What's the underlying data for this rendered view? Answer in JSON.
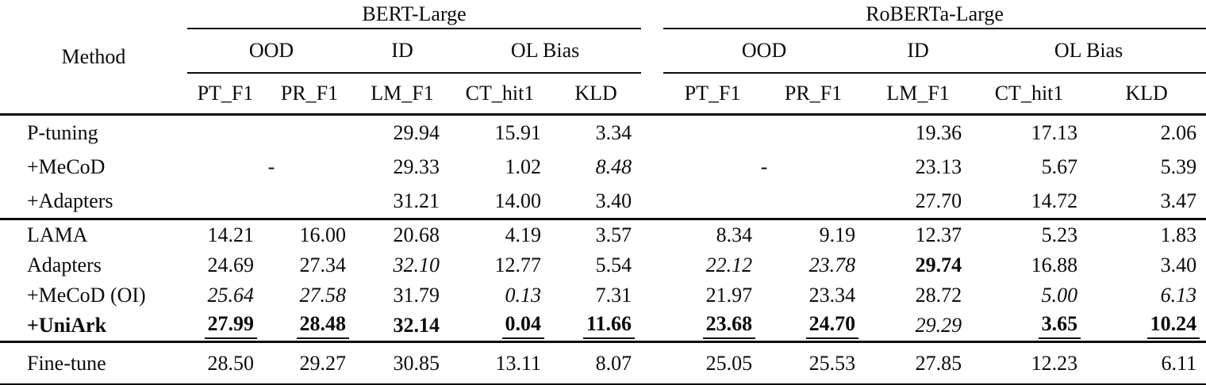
{
  "table": {
    "method_label": "Method",
    "models": [
      "BERT-Large",
      "RoBERTa-Large"
    ],
    "groups": [
      "OOD",
      "ID",
      "OL Bias"
    ],
    "columns": [
      "PT_F1",
      "PR_F1",
      "LM_F1",
      "CT_hit1",
      "KLD"
    ],
    "blocks": [
      {
        "rows": [
          {
            "label": "P-tuning",
            "cells": {
              "bert": [
                {
                  "v": "",
                  "span": 2
                },
                {
                  "v": "29.94"
                },
                {
                  "v": "15.91"
                },
                {
                  "v": "3.34"
                }
              ],
              "roberta": [
                {
                  "v": "",
                  "span": 2
                },
                {
                  "v": "19.36"
                },
                {
                  "v": "17.13"
                },
                {
                  "v": "2.06"
                }
              ]
            }
          },
          {
            "label": "+MeCoD",
            "cells": {
              "bert": [
                {
                  "v": "-",
                  "span": 2,
                  "align": "center"
                },
                {
                  "v": "29.33"
                },
                {
                  "v": "1.02"
                },
                {
                  "v": "8.48",
                  "style": "italic"
                }
              ],
              "roberta": [
                {
                  "v": "-",
                  "span": 2,
                  "align": "center"
                },
                {
                  "v": "23.13"
                },
                {
                  "v": "5.67"
                },
                {
                  "v": "5.39"
                }
              ]
            }
          },
          {
            "label": "+Adapters",
            "cells": {
              "bert": [
                {
                  "v": "",
                  "span": 2
                },
                {
                  "v": "31.21"
                },
                {
                  "v": "14.00"
                },
                {
                  "v": "3.40"
                }
              ],
              "roberta": [
                {
                  "v": "",
                  "span": 2
                },
                {
                  "v": "27.70"
                },
                {
                  "v": "14.72"
                },
                {
                  "v": "3.47"
                }
              ]
            }
          }
        ]
      },
      {
        "rows": [
          {
            "label": "LAMA",
            "cells": {
              "bert": [
                {
                  "v": "14.21"
                },
                {
                  "v": "16.00"
                },
                {
                  "v": "20.68"
                },
                {
                  "v": "4.19"
                },
                {
                  "v": "3.57"
                }
              ],
              "roberta": [
                {
                  "v": "8.34"
                },
                {
                  "v": "9.19"
                },
                {
                  "v": "12.37"
                },
                {
                  "v": "5.23"
                },
                {
                  "v": "1.83"
                }
              ]
            }
          },
          {
            "label": "Adapters",
            "cells": {
              "bert": [
                {
                  "v": "24.69"
                },
                {
                  "v": "27.34"
                },
                {
                  "v": "32.10",
                  "style": "italic"
                },
                {
                  "v": "12.77"
                },
                {
                  "v": "5.54"
                }
              ],
              "roberta": [
                {
                  "v": "22.12",
                  "style": "italic"
                },
                {
                  "v": "23.78",
                  "style": "italic"
                },
                {
                  "v": "29.74",
                  "style": "bold"
                },
                {
                  "v": "16.88"
                },
                {
                  "v": "3.40"
                }
              ]
            }
          },
          {
            "label": "+MeCoD (OI)",
            "cells": {
              "bert": [
                {
                  "v": "25.64",
                  "style": "italic"
                },
                {
                  "v": "27.58",
                  "style": "italic"
                },
                {
                  "v": "31.79"
                },
                {
                  "v": "0.13",
                  "style": "italic"
                },
                {
                  "v": "7.31"
                }
              ],
              "roberta": [
                {
                  "v": "21.97"
                },
                {
                  "v": "23.34"
                },
                {
                  "v": "28.72"
                },
                {
                  "v": "5.00",
                  "style": "italic"
                },
                {
                  "v": "6.13",
                  "style": "italic"
                }
              ]
            }
          },
          {
            "label": "+UniArk",
            "label_style": "bold",
            "cells": {
              "bert": [
                {
                  "v": "27.99",
                  "style": "bold-underline"
                },
                {
                  "v": "28.48",
                  "style": "bold-underline"
                },
                {
                  "v": "32.14",
                  "style": "bold"
                },
                {
                  "v": "0.04",
                  "style": "bold-underline"
                },
                {
                  "v": "11.66",
                  "style": "bold-underline"
                }
              ],
              "roberta": [
                {
                  "v": "23.68",
                  "style": "bold-underline"
                },
                {
                  "v": "24.70",
                  "style": "bold-underline"
                },
                {
                  "v": "29.29",
                  "style": "italic"
                },
                {
                  "v": "3.65",
                  "style": "bold-underline"
                },
                {
                  "v": "10.24",
                  "style": "bold-underline"
                }
              ]
            }
          }
        ]
      },
      {
        "rows": [
          {
            "label": "Fine-tune",
            "cells": {
              "bert": [
                {
                  "v": "28.50"
                },
                {
                  "v": "29.27"
                },
                {
                  "v": "30.85"
                },
                {
                  "v": "13.11"
                },
                {
                  "v": "8.07"
                }
              ],
              "roberta": [
                {
                  "v": "25.05"
                },
                {
                  "v": "25.53"
                },
                {
                  "v": "27.85"
                },
                {
                  "v": "12.23"
                },
                {
                  "v": "6.11"
                }
              ]
            }
          }
        ]
      }
    ]
  }
}
